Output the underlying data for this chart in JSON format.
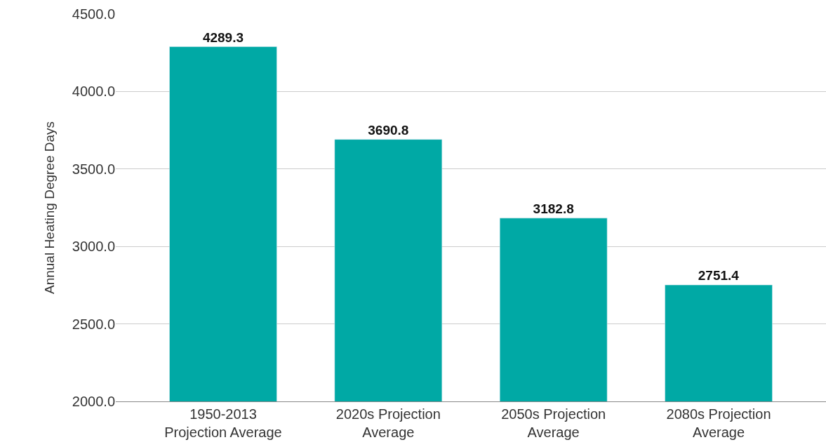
{
  "chart_data": {
    "type": "bar",
    "ylabel": "Annual Heating Degree Days",
    "categories": [
      "1950-2013 Projection Average",
      "2020s Projection Average",
      "2050s Projection Average",
      "2080s Projection Average"
    ],
    "values": [
      4289.3,
      3690.8,
      3182.8,
      2751.4
    ],
    "color": "#00a9a5",
    "ylim": [
      2000,
      4500
    ],
    "yticks": [
      {
        "value": 2000,
        "label": "2000.0"
      },
      {
        "value": 2500,
        "label": "2500.0"
      },
      {
        "value": 3000,
        "label": "3000.0"
      },
      {
        "value": 3500,
        "label": "3500.0"
      },
      {
        "value": 4000,
        "label": "4000.0"
      },
      {
        "value": 4500,
        "label": "4500.0"
      }
    ],
    "grid": "y",
    "data_labels": true,
    "legend": false
  }
}
